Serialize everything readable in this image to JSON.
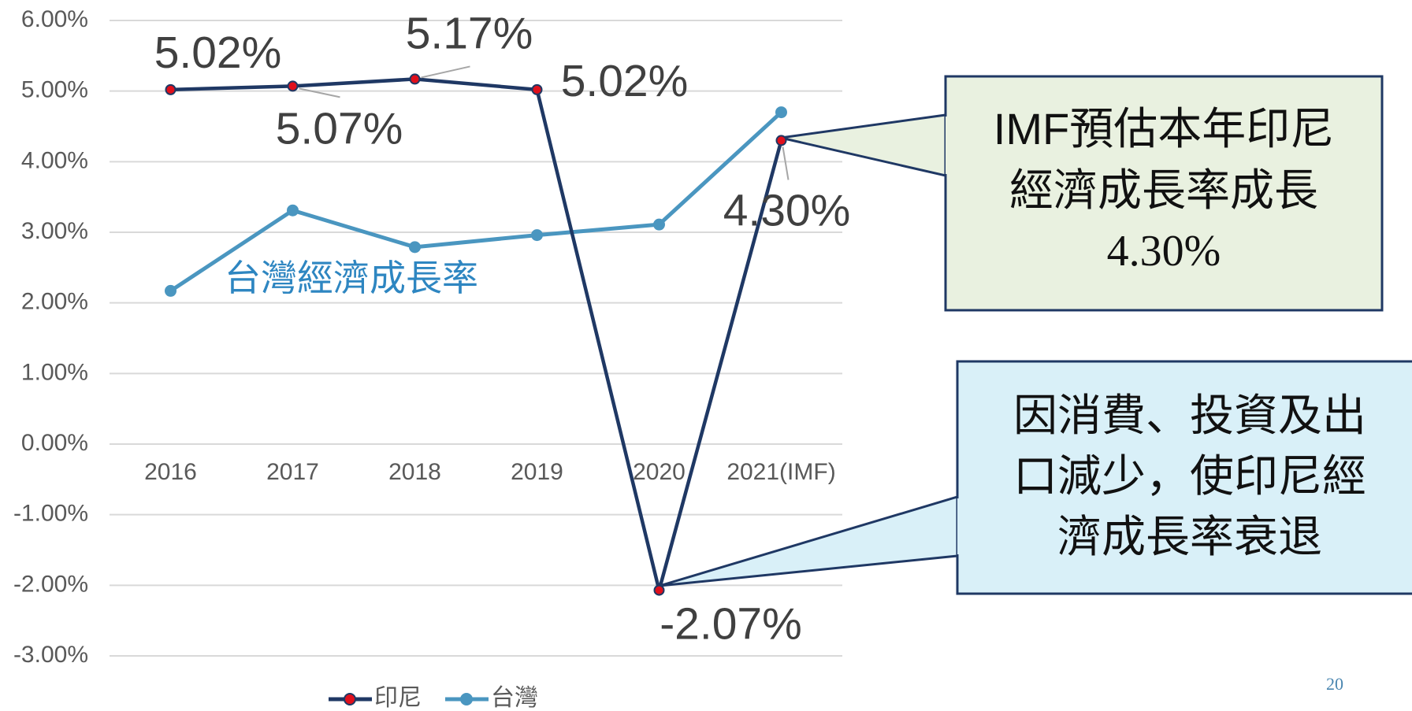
{
  "chart_data": {
    "type": "line",
    "categories": [
      "2016",
      "2017",
      "2018",
      "2019",
      "2020",
      "2021(IMF)"
    ],
    "series": [
      {
        "name": "印尼",
        "color": "#1f3864",
        "marker_color": "#e0101c",
        "values": [
          5.02,
          5.07,
          5.17,
          5.02,
          -2.07,
          4.3
        ],
        "value_labels": [
          "5.02%",
          "5.07%",
          "5.17%",
          "5.02%",
          "-2.07%",
          "4.30%"
        ]
      },
      {
        "name": "台灣",
        "color": "#4a96c0",
        "marker_color": "#4a96c0",
        "values": [
          2.17,
          3.31,
          2.79,
          2.96,
          3.11,
          4.7
        ]
      }
    ],
    "ylim": [
      -3,
      6
    ],
    "yticks": [
      {
        "value": -3,
        "label": "-3.00%"
      },
      {
        "value": -2,
        "label": "-2.00%"
      },
      {
        "value": -1,
        "label": "-1.00%"
      },
      {
        "value": 0,
        "label": "0.00%"
      },
      {
        "value": 1,
        "label": "1.00%"
      },
      {
        "value": 2,
        "label": "2.00%"
      },
      {
        "value": 3,
        "label": "3.00%"
      },
      {
        "value": 4,
        "label": "4.00%"
      },
      {
        "value": 5,
        "label": "5.00%"
      },
      {
        "value": 6,
        "label": "6.00%"
      }
    ],
    "grid": true,
    "legend": "bottom",
    "annotations": [
      "台灣經濟成長率"
    ],
    "callouts": [
      {
        "lines": [
          "IMF預估本年印尼",
          "經濟成長率成長",
          "4.30%"
        ]
      },
      {
        "lines": [
          "因消費、投資及出",
          "口減少，使印尼經",
          "濟成長率衰退"
        ]
      }
    ]
  },
  "page_number": "20"
}
